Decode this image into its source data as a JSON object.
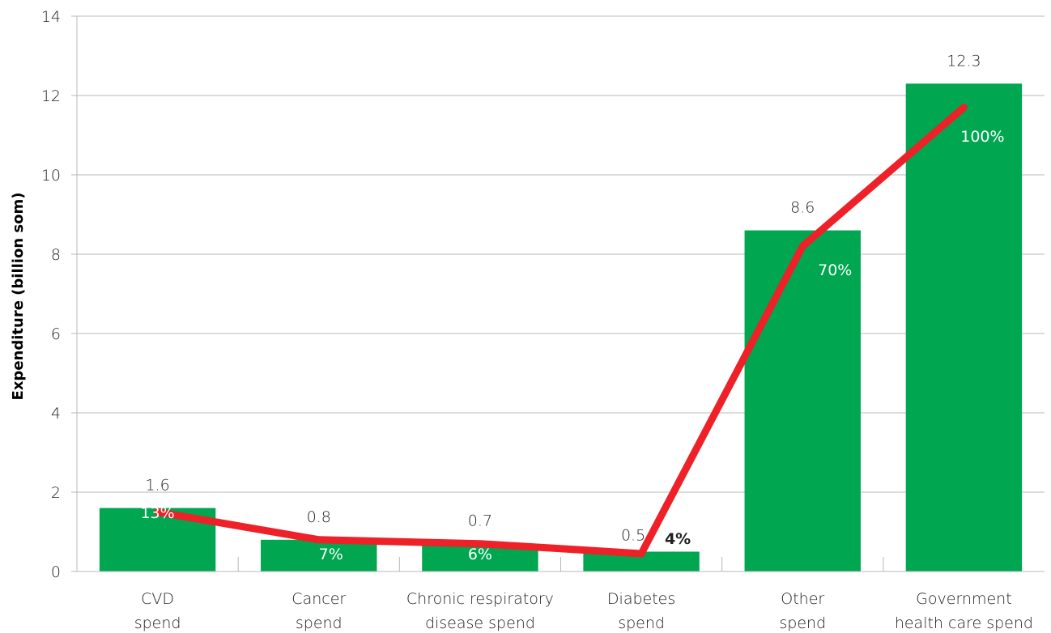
{
  "chart_data": {
    "type": "bar",
    "title": "",
    "xlabel": "",
    "ylabel": "Expenditure (billion som)",
    "ylim": [
      0,
      14
    ],
    "yticks": [
      0,
      2,
      4,
      6,
      8,
      10,
      12,
      14
    ],
    "grid": true,
    "categories": [
      [
        "CVD",
        "spend"
      ],
      [
        "Cancer",
        "spend"
      ],
      [
        "Chronic respiratory",
        "disease spend"
      ],
      [
        "Diabetes",
        "spend"
      ],
      [
        "Other",
        "spend"
      ],
      [
        "Government",
        "health care spend"
      ]
    ],
    "values": [
      1.6,
      0.8,
      0.7,
      0.5,
      8.6,
      12.3
    ],
    "value_labels": [
      "1.6",
      "0.8",
      "0.7",
      "0.5",
      "8.6",
      "12.3"
    ],
    "cumulative_line": [
      1.5,
      0.8,
      0.7,
      0.45,
      8.2,
      11.7
    ],
    "percent_labels": [
      "13%",
      "7%",
      "6%",
      "4%",
      "70%",
      "100%"
    ],
    "colors": {
      "bar": "#00a650",
      "line": "#ee2028",
      "grid": "#b8b8b8"
    }
  }
}
